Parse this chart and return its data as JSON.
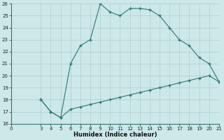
{
  "xlabel": "Humidex (Indice chaleur)",
  "upper_x": [
    3,
    4,
    5,
    6,
    7,
    8,
    9,
    10,
    11,
    12,
    13,
    14,
    15,
    16,
    17,
    18,
    19,
    20,
    21
  ],
  "upper_y": [
    18.0,
    17.0,
    16.5,
    21.0,
    22.5,
    23.0,
    26.0,
    25.3,
    25.0,
    25.6,
    25.6,
    25.5,
    25.0,
    24.0,
    23.0,
    22.5,
    21.5,
    21.0,
    19.5
  ],
  "lower_x": [
    3,
    4,
    5,
    6,
    7,
    8,
    9,
    10,
    11,
    12,
    13,
    14,
    15,
    16,
    17,
    18,
    19,
    20,
    21
  ],
  "lower_y": [
    18.0,
    17.0,
    16.5,
    17.2,
    17.4,
    17.6,
    17.8,
    18.0,
    18.2,
    18.4,
    18.6,
    18.8,
    19.0,
    19.2,
    19.4,
    19.6,
    19.8,
    20.0,
    19.5
  ],
  "line_color": "#2d7a6e",
  "bg_color": "#cce8e8",
  "grid_major_color": "#b0cccc",
  "grid_minor_color": "#c4dcdc",
  "xlim": [
    0,
    21
  ],
  "ylim": [
    16,
    26
  ],
  "xticks": [
    0,
    3,
    4,
    5,
    6,
    7,
    8,
    9,
    10,
    11,
    12,
    13,
    14,
    15,
    16,
    17,
    18,
    19,
    20,
    21
  ],
  "yticks": [
    16,
    17,
    18,
    19,
    20,
    21,
    22,
    23,
    24,
    25,
    26
  ]
}
